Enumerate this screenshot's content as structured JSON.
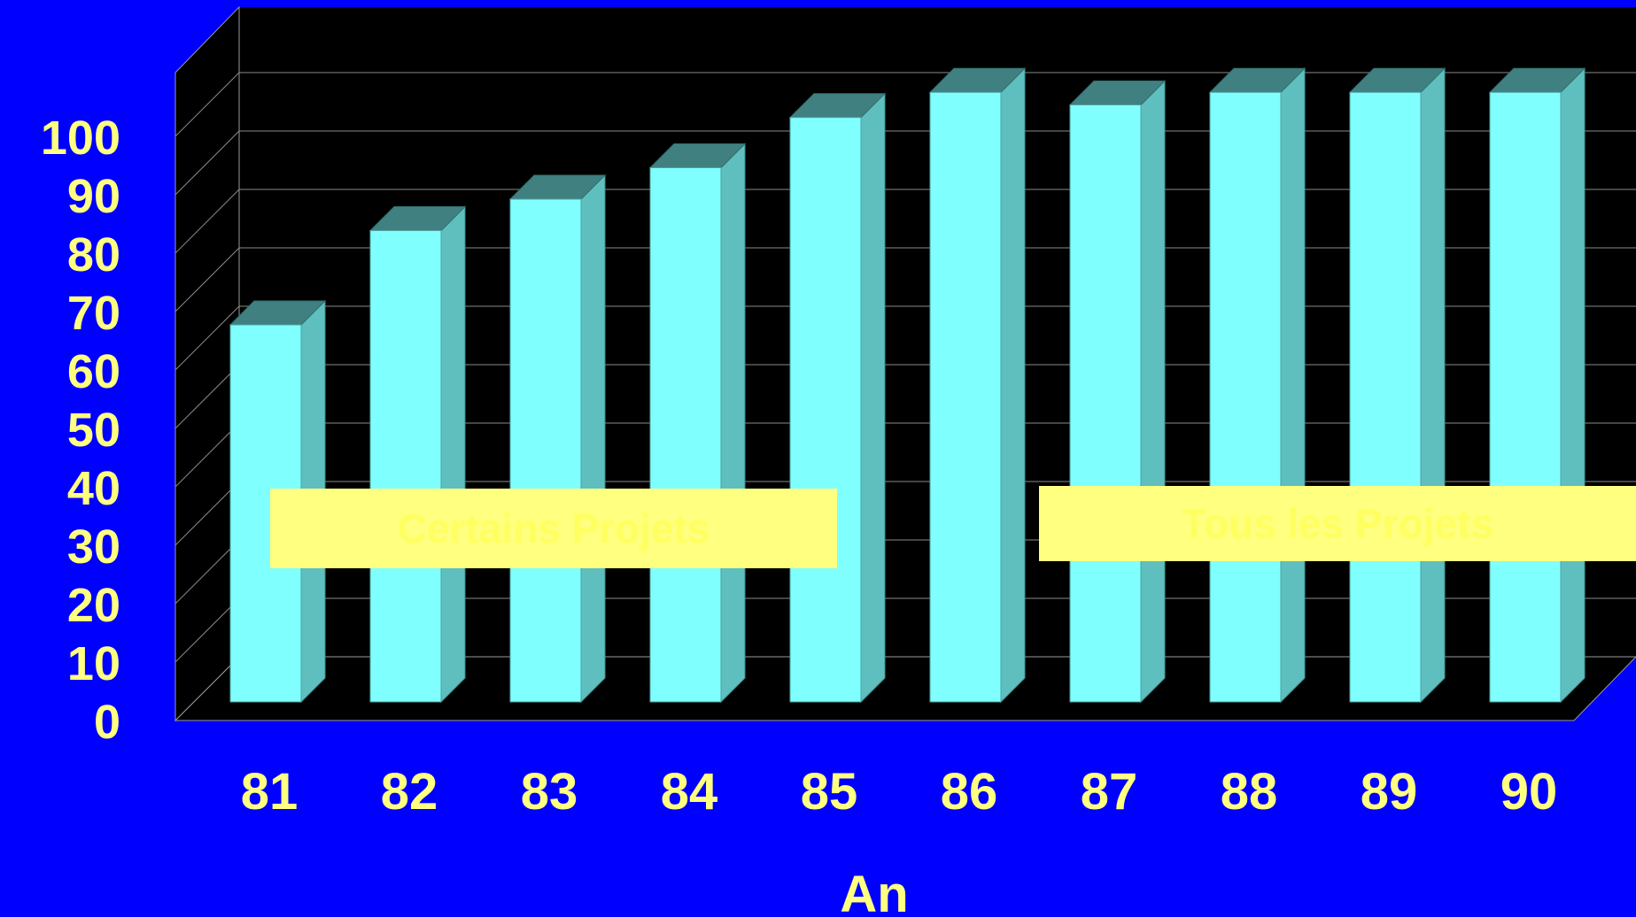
{
  "chart_data": {
    "type": "bar",
    "title": "",
    "xlabel": "An",
    "ylabel": "",
    "categories": [
      "81",
      "82",
      "83",
      "84",
      "85",
      "86",
      "87",
      "88",
      "89",
      "90"
    ],
    "values": [
      60,
      75,
      80,
      85,
      93,
      97,
      95,
      97,
      97,
      97
    ],
    "ylim": [
      0,
      100
    ],
    "yticks": [
      "0",
      "10",
      "20",
      "30",
      "40",
      "50",
      "60",
      "70",
      "80",
      "90",
      "100"
    ],
    "grid": true,
    "annotations": [
      {
        "text": "Certains Projets",
        "covers": [
          "81",
          "84"
        ]
      },
      {
        "text": "Tous les Projets",
        "covers": [
          "87",
          "90"
        ]
      }
    ],
    "colors": {
      "background": "#0000ff",
      "plot_area": "#000000",
      "bar_front": "#80ffff",
      "bar_side": "#5fbfbf",
      "bar_top": "#408080",
      "text": "#ffff80",
      "annotation_box": "#ffff80",
      "annotation_text": "#ffff60"
    }
  }
}
